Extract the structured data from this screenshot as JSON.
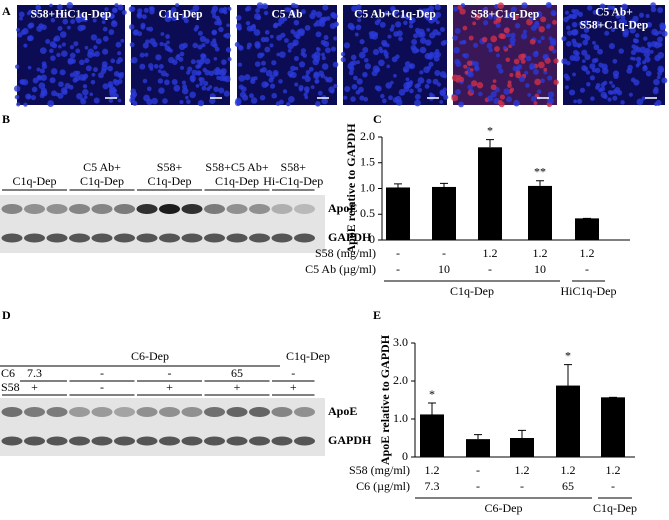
{
  "panels": {
    "A": {
      "letter": "A",
      "images": [
        [
          "S58+HiC1q-Dep"
        ],
        [
          "C1q-Dep"
        ],
        [
          "C5 Ab"
        ],
        [
          "C5 Ab+C1q-Dep"
        ],
        [
          "S58+C1q-Dep"
        ],
        [
          "C5 Ab+",
          "S58+C1q-Dep"
        ]
      ]
    },
    "B": {
      "letter": "B",
      "groups": [
        [
          "C1q-Dep"
        ],
        [
          "C5 Ab+",
          "C1q-Dep"
        ],
        [
          "S58+",
          "C1q-Dep"
        ],
        [
          "S58+C5 Ab+",
          "C1q-Dep"
        ],
        [
          "S58+",
          "Hi-C1q-Dep"
        ]
      ],
      "bands": [
        "ApoE",
        "GAPDH"
      ]
    },
    "D": {
      "letter": "D",
      "headers": [
        "C6-Dep",
        "C1q-Dep"
      ],
      "rows": [
        {
          "name": "C6",
          "values": [
            "7.3",
            "-",
            "-",
            "65",
            "-"
          ]
        },
        {
          "name": "S58",
          "values": [
            "+",
            "-",
            "+",
            "+",
            "+"
          ]
        }
      ],
      "bands": [
        "ApoE",
        "GAPDH"
      ]
    }
  },
  "chart_data": [
    {
      "type": "bar",
      "letter": "C",
      "ylabel": "ApoE relative to GAPDH",
      "color": "#000000",
      "values": [
        1.02,
        1.03,
        1.8,
        1.05,
        0.42
      ],
      "errors": [
        0.07,
        0.07,
        0.15,
        0.1,
        0
      ],
      "annotations": [
        null,
        null,
        "*",
        "**",
        null
      ],
      "ylim": [
        0,
        2
      ],
      "yticks": [
        0,
        0.5,
        {
          "value": 1,
          "label": "1.0"
        },
        1.5,
        {
          "value": 2,
          "label": "2.0"
        }
      ],
      "conditions": [
        {
          "name": "S58 (mg/ml)",
          "values": [
            "-",
            "-",
            "1.2",
            "1.2",
            "1.2"
          ]
        },
        {
          "name": "C5 Ab (µg/ml)",
          "values": [
            "-",
            "10",
            "-",
            "10",
            "-"
          ]
        }
      ],
      "groups": [
        "C1q-Dep",
        "HiC1q-Dep"
      ]
    },
    {
      "type": "bar",
      "letter": "E",
      "ylabel": "ApoE relative to GAPDH",
      "color": "#000000",
      "values": [
        1.12,
        0.47,
        0.5,
        1.88,
        1.57
      ],
      "errors": [
        0.3,
        0.12,
        0.2,
        0.55,
        0
      ],
      "annotations": [
        "*",
        null,
        null,
        "*",
        null
      ],
      "ylim": [
        0,
        3
      ],
      "yticks": [
        0,
        {
          "value": 1,
          "label": "1.0"
        },
        {
          "value": 2,
          "label": "2.0"
        },
        {
          "value": 3,
          "label": "3.0"
        }
      ],
      "conditions": [
        {
          "name": "S58 (mg/ml)",
          "values": [
            "1.2",
            "-",
            "1.2",
            "1.2",
            "1.2"
          ]
        },
        {
          "name": "C6 (µg/ml)",
          "values": [
            "7.3",
            "-",
            "-",
            "65",
            "-"
          ]
        }
      ],
      "groups": [
        "C6-Dep",
        "C1q-Dep"
      ]
    }
  ]
}
